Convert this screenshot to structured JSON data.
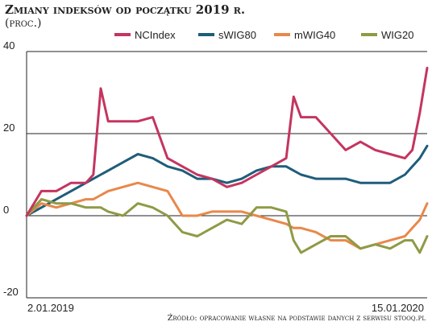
{
  "chart_data": {
    "type": "line",
    "title": "Zmiany indeksów od początku 2019 r.",
    "subtitle": "(proc.)",
    "source": "Źródło: opracowanie własne na podstawie danych z serwisu stooq.pl",
    "x_start_label": "2.01.2019",
    "x_end_label": "15.01.2020",
    "x_range": [
      "2019-01-02",
      "2020-01-15"
    ],
    "ylim": [
      -20,
      40
    ],
    "yticks": [
      40,
      20,
      0,
      -20
    ],
    "grid": "horizontal",
    "legend_position": "top",
    "x": [
      "2019-01-02",
      "2019-01-16",
      "2019-01-30",
      "2019-02-13",
      "2019-02-27",
      "2019-03-06",
      "2019-03-13",
      "2019-03-20",
      "2019-04-03",
      "2019-04-17",
      "2019-05-01",
      "2019-05-15",
      "2019-05-29",
      "2019-06-12",
      "2019-06-26",
      "2019-07-10",
      "2019-07-24",
      "2019-08-07",
      "2019-08-21",
      "2019-09-04",
      "2019-09-11",
      "2019-09-18",
      "2019-10-02",
      "2019-10-16",
      "2019-10-30",
      "2019-11-13",
      "2019-11-27",
      "2019-12-11",
      "2019-12-25",
      "2020-01-01",
      "2020-01-08",
      "2020-01-15"
    ],
    "series": [
      {
        "name": "NCIndex",
        "color": "#c4355f",
        "values": [
          0,
          6,
          6,
          8,
          8,
          10,
          31,
          23,
          23,
          23,
          24,
          14,
          12,
          10,
          9,
          7,
          8,
          10,
          12,
          14,
          29,
          24,
          24,
          20,
          16,
          18,
          16,
          15,
          14,
          16,
          25,
          36
        ]
      },
      {
        "name": "sWIG80",
        "color": "#1f5d7a",
        "values": [
          0,
          2,
          4,
          6,
          8,
          9,
          10,
          11,
          13,
          15,
          14,
          12,
          11,
          9,
          9,
          8,
          9,
          11,
          12,
          12,
          11,
          10,
          9,
          9,
          9,
          8,
          8,
          8,
          10,
          12,
          14,
          17
        ]
      },
      {
        "name": "mWIG40",
        "color": "#e8884a",
        "values": [
          0,
          3,
          2,
          3,
          4,
          4,
          5,
          6,
          7,
          8,
          7,
          6,
          0,
          0,
          1,
          1,
          1,
          0,
          -1,
          -2,
          -3,
          -3,
          -4,
          -6,
          -6,
          -8,
          -7,
          -6,
          -5,
          -3,
          -1,
          3
        ]
      },
      {
        "name": "WIG20",
        "color": "#8f9a45",
        "values": [
          0,
          4,
          3,
          3,
          2,
          2,
          2,
          1,
          0,
          3,
          2,
          0,
          -4,
          -5,
          -3,
          -1,
          -2,
          2,
          2,
          1,
          -6,
          -9,
          -7,
          -5,
          -5,
          -8,
          -7,
          -8,
          -6,
          -6,
          -9,
          -5
        ]
      }
    ]
  }
}
